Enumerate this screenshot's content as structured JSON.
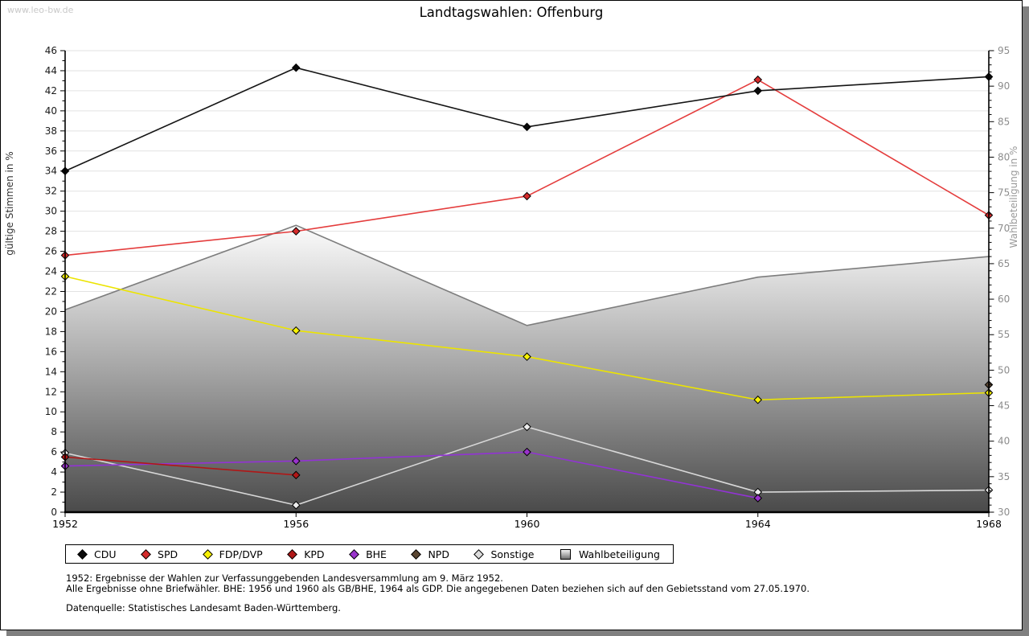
{
  "watermark": "www.leo-bw.de",
  "title": "Landtagswahlen: Offenburg",
  "chart_data": {
    "type": "line",
    "categories": [
      "1952",
      "1956",
      "1960",
      "1964",
      "1968"
    ],
    "left_axis": {
      "label": "gültige Stimmen in %",
      "min": 0,
      "max": 46,
      "tick_step": 2
    },
    "right_axis": {
      "label": "Wahlbeteiligung in %",
      "min": 30,
      "max": 95,
      "tick_step": 5
    },
    "grid": "horizontal",
    "legend_position": "bottom",
    "series": [
      {
        "name": "CDU",
        "axis": "left",
        "line_color": "#141414",
        "marker_color": "#0a0a0a",
        "values": [
          34.0,
          44.3,
          38.4,
          42.0,
          43.4
        ]
      },
      {
        "name": "SPD",
        "axis": "left",
        "line_color": "#e43c3c",
        "marker_color": "#d42a2a",
        "values": [
          25.6,
          28.0,
          31.5,
          43.1,
          29.6
        ]
      },
      {
        "name": "FDP/DVP",
        "axis": "left",
        "line_color": "#ece400",
        "marker_color": "#f7f104",
        "values": [
          23.5,
          18.1,
          15.5,
          11.2,
          11.9
        ]
      },
      {
        "name": "KPD",
        "axis": "left",
        "line_color": "#b01717",
        "marker_color": "#b01717",
        "values": [
          5.5,
          3.7,
          null,
          null,
          null
        ]
      },
      {
        "name": "BHE",
        "axis": "left",
        "line_color": "#9233d4",
        "marker_color": "#9933cc",
        "values": [
          4.6,
          5.1,
          6.0,
          1.4,
          null
        ]
      },
      {
        "name": "NPD",
        "axis": "left",
        "line_color": "#5a4632",
        "marker_color": "#5a4632",
        "values": [
          null,
          null,
          null,
          null,
          12.7
        ]
      },
      {
        "name": "Sonstige",
        "axis": "left",
        "line_color": "#d8d8d8",
        "marker_color": "#ececec",
        "values": [
          5.9,
          0.7,
          8.5,
          2.0,
          2.2
        ]
      }
    ],
    "participation": {
      "name": "Wahlbeteiligung",
      "axis": "right",
      "values": [
        58.5,
        70.4,
        56.3,
        63.1,
        66.0
      ],
      "boundary_color": "#7d7d7d",
      "fill_top": "#fcfcfc",
      "fill_mid": "#a6a6a6",
      "fill_bottom": "#4a4a4a"
    },
    "colors": {
      "gridline": "#e2e2e2",
      "axis": "#000000",
      "left_tick_label": "#1a1a1a",
      "right_tick_label": "#8c8c8c",
      "left_axis_title": "#333333",
      "right_axis_title": "#9a9a9a"
    }
  },
  "legend": {
    "items": [
      {
        "label": "CDU",
        "shape": "diamond",
        "color": "#0a0a0a"
      },
      {
        "label": "SPD",
        "shape": "diamond",
        "color": "#d42a2a"
      },
      {
        "label": "FDP/DVP",
        "shape": "diamond",
        "color": "#f7f104"
      },
      {
        "label": "KPD",
        "shape": "diamond",
        "color": "#b01717"
      },
      {
        "label": "BHE",
        "shape": "diamond",
        "color": "#9933cc"
      },
      {
        "label": "NPD",
        "shape": "diamond",
        "color": "#5a4632"
      },
      {
        "label": "Sonstige",
        "shape": "diamond",
        "color": "#dcdcdc"
      },
      {
        "label": "Wahlbeteiligung",
        "shape": "square",
        "color": "#b0b0b0"
      }
    ]
  },
  "footnotes": {
    "line1": "1952: Ergebnisse der Wahlen zur Verfassunggebenden Landesversammlung am 9. März 1952.",
    "line2": "Alle Ergebnisse ohne Briefwähler. BHE: 1956 und 1960 als GB/BHE, 1964 als GDP. Die angegebenen Daten beziehen sich auf den Gebietsstand vom 27.05.1970.",
    "source": "Datenquelle: Statistisches Landesamt Baden-Württemberg."
  }
}
